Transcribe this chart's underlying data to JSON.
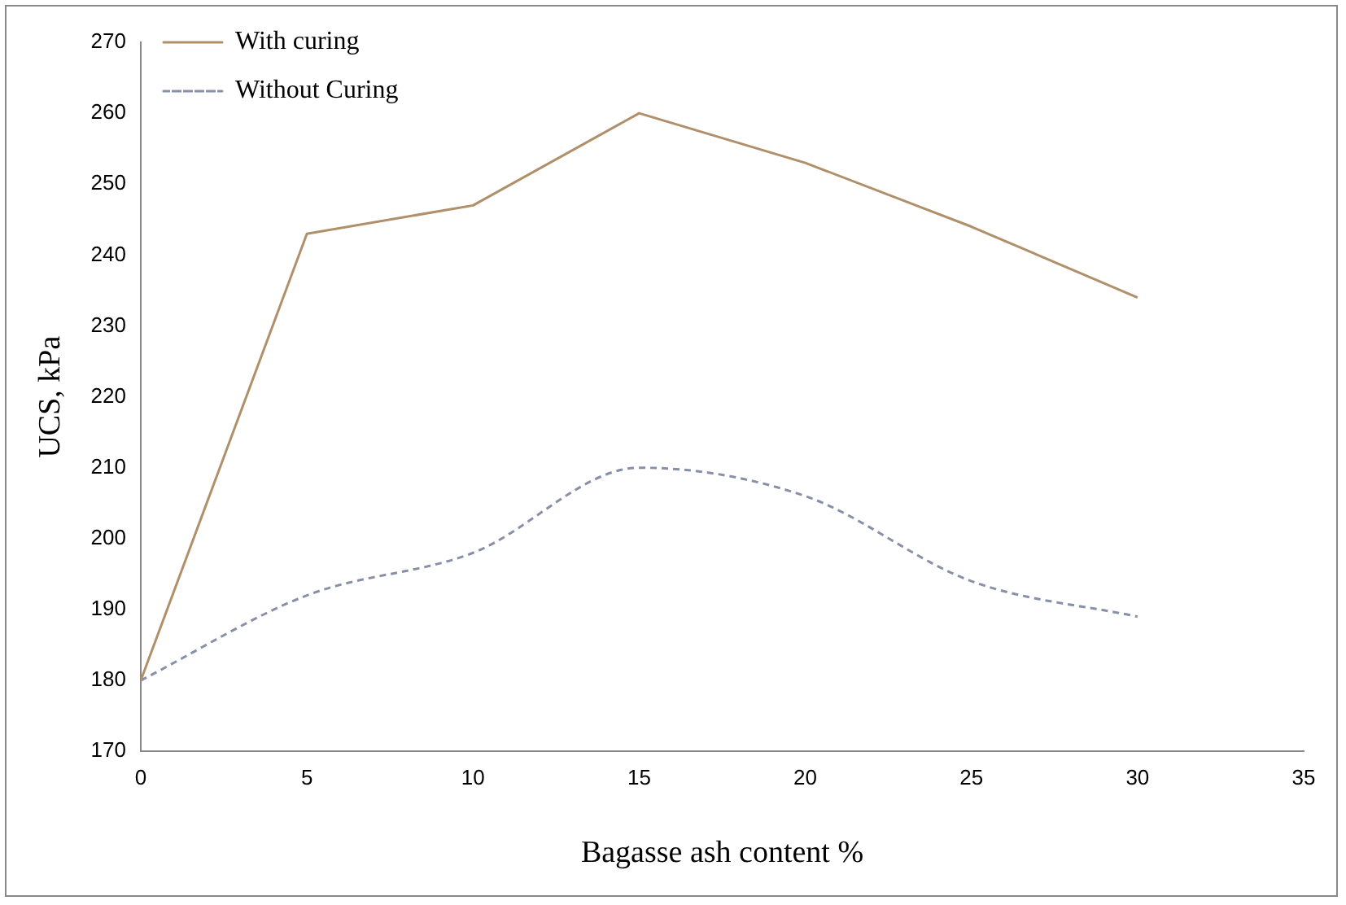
{
  "chart_data": {
    "type": "line",
    "xlabel": "Bagasse ash content %",
    "ylabel": "UCS, kPa",
    "x": [
      0,
      5,
      10,
      15,
      20,
      25,
      30
    ],
    "series": [
      {
        "name": "With curing",
        "color": "#b0906a",
        "line_style": "solid",
        "values": [
          180,
          243,
          247,
          260,
          253,
          244,
          234
        ]
      },
      {
        "name": "Without Curing",
        "color": "#8890a8",
        "line_style": "dashed",
        "values": [
          180,
          192,
          198,
          210,
          206,
          194,
          189
        ]
      }
    ],
    "xlim": [
      0,
      35
    ],
    "xticks": [
      0,
      5,
      10,
      15,
      20,
      25,
      30,
      35
    ],
    "ylim": [
      170,
      270
    ],
    "yticks": [
      170,
      180,
      190,
      200,
      210,
      220,
      230,
      240,
      250,
      260,
      270
    ],
    "grid": false,
    "legend": "top left",
    "marker": "none"
  }
}
